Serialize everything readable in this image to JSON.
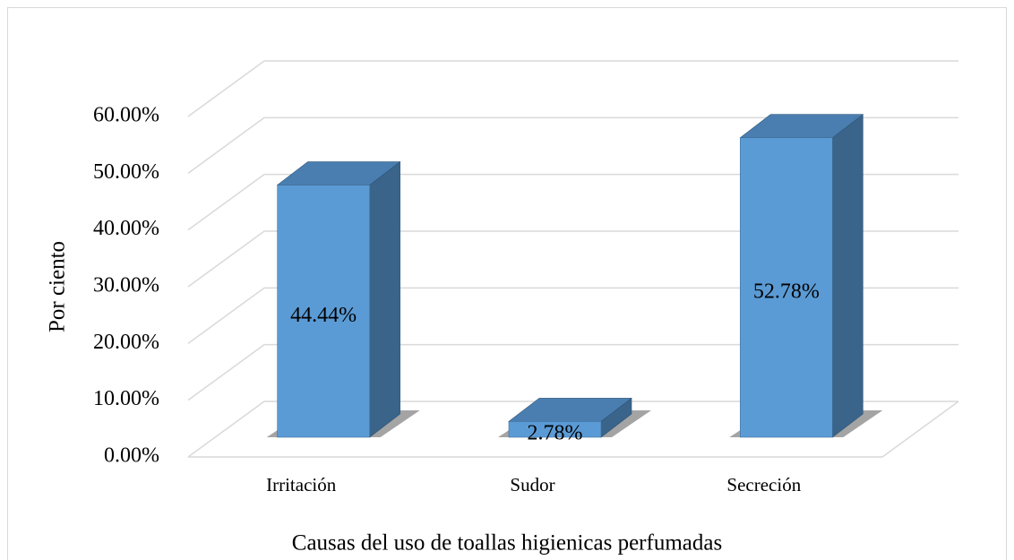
{
  "chart_data": {
    "type": "bar3d",
    "x_label": "Causas del uso de toallas higienicas perfumadas",
    "y_label": "Por ciento",
    "categories": [
      "Irritación",
      "Sudor",
      "Secreción"
    ],
    "values": [
      44.44,
      2.78,
      52.78
    ],
    "value_labels": [
      "44.44%",
      "2.78%",
      "52.78%"
    ],
    "color": "#5b9bd5",
    "ylim": [
      0,
      60
    ],
    "yticks": [
      {
        "value": 0,
        "label": "0.00%"
      },
      {
        "value": 10,
        "label": "10.00%"
      },
      {
        "value": 20,
        "label": "20.00%"
      },
      {
        "value": 30,
        "label": "30.00%"
      },
      {
        "value": 40,
        "label": "40.00%"
      },
      {
        "value": 50,
        "label": "50.00%"
      },
      {
        "value": 60,
        "label": "60.00%"
      }
    ],
    "grid": true
  }
}
